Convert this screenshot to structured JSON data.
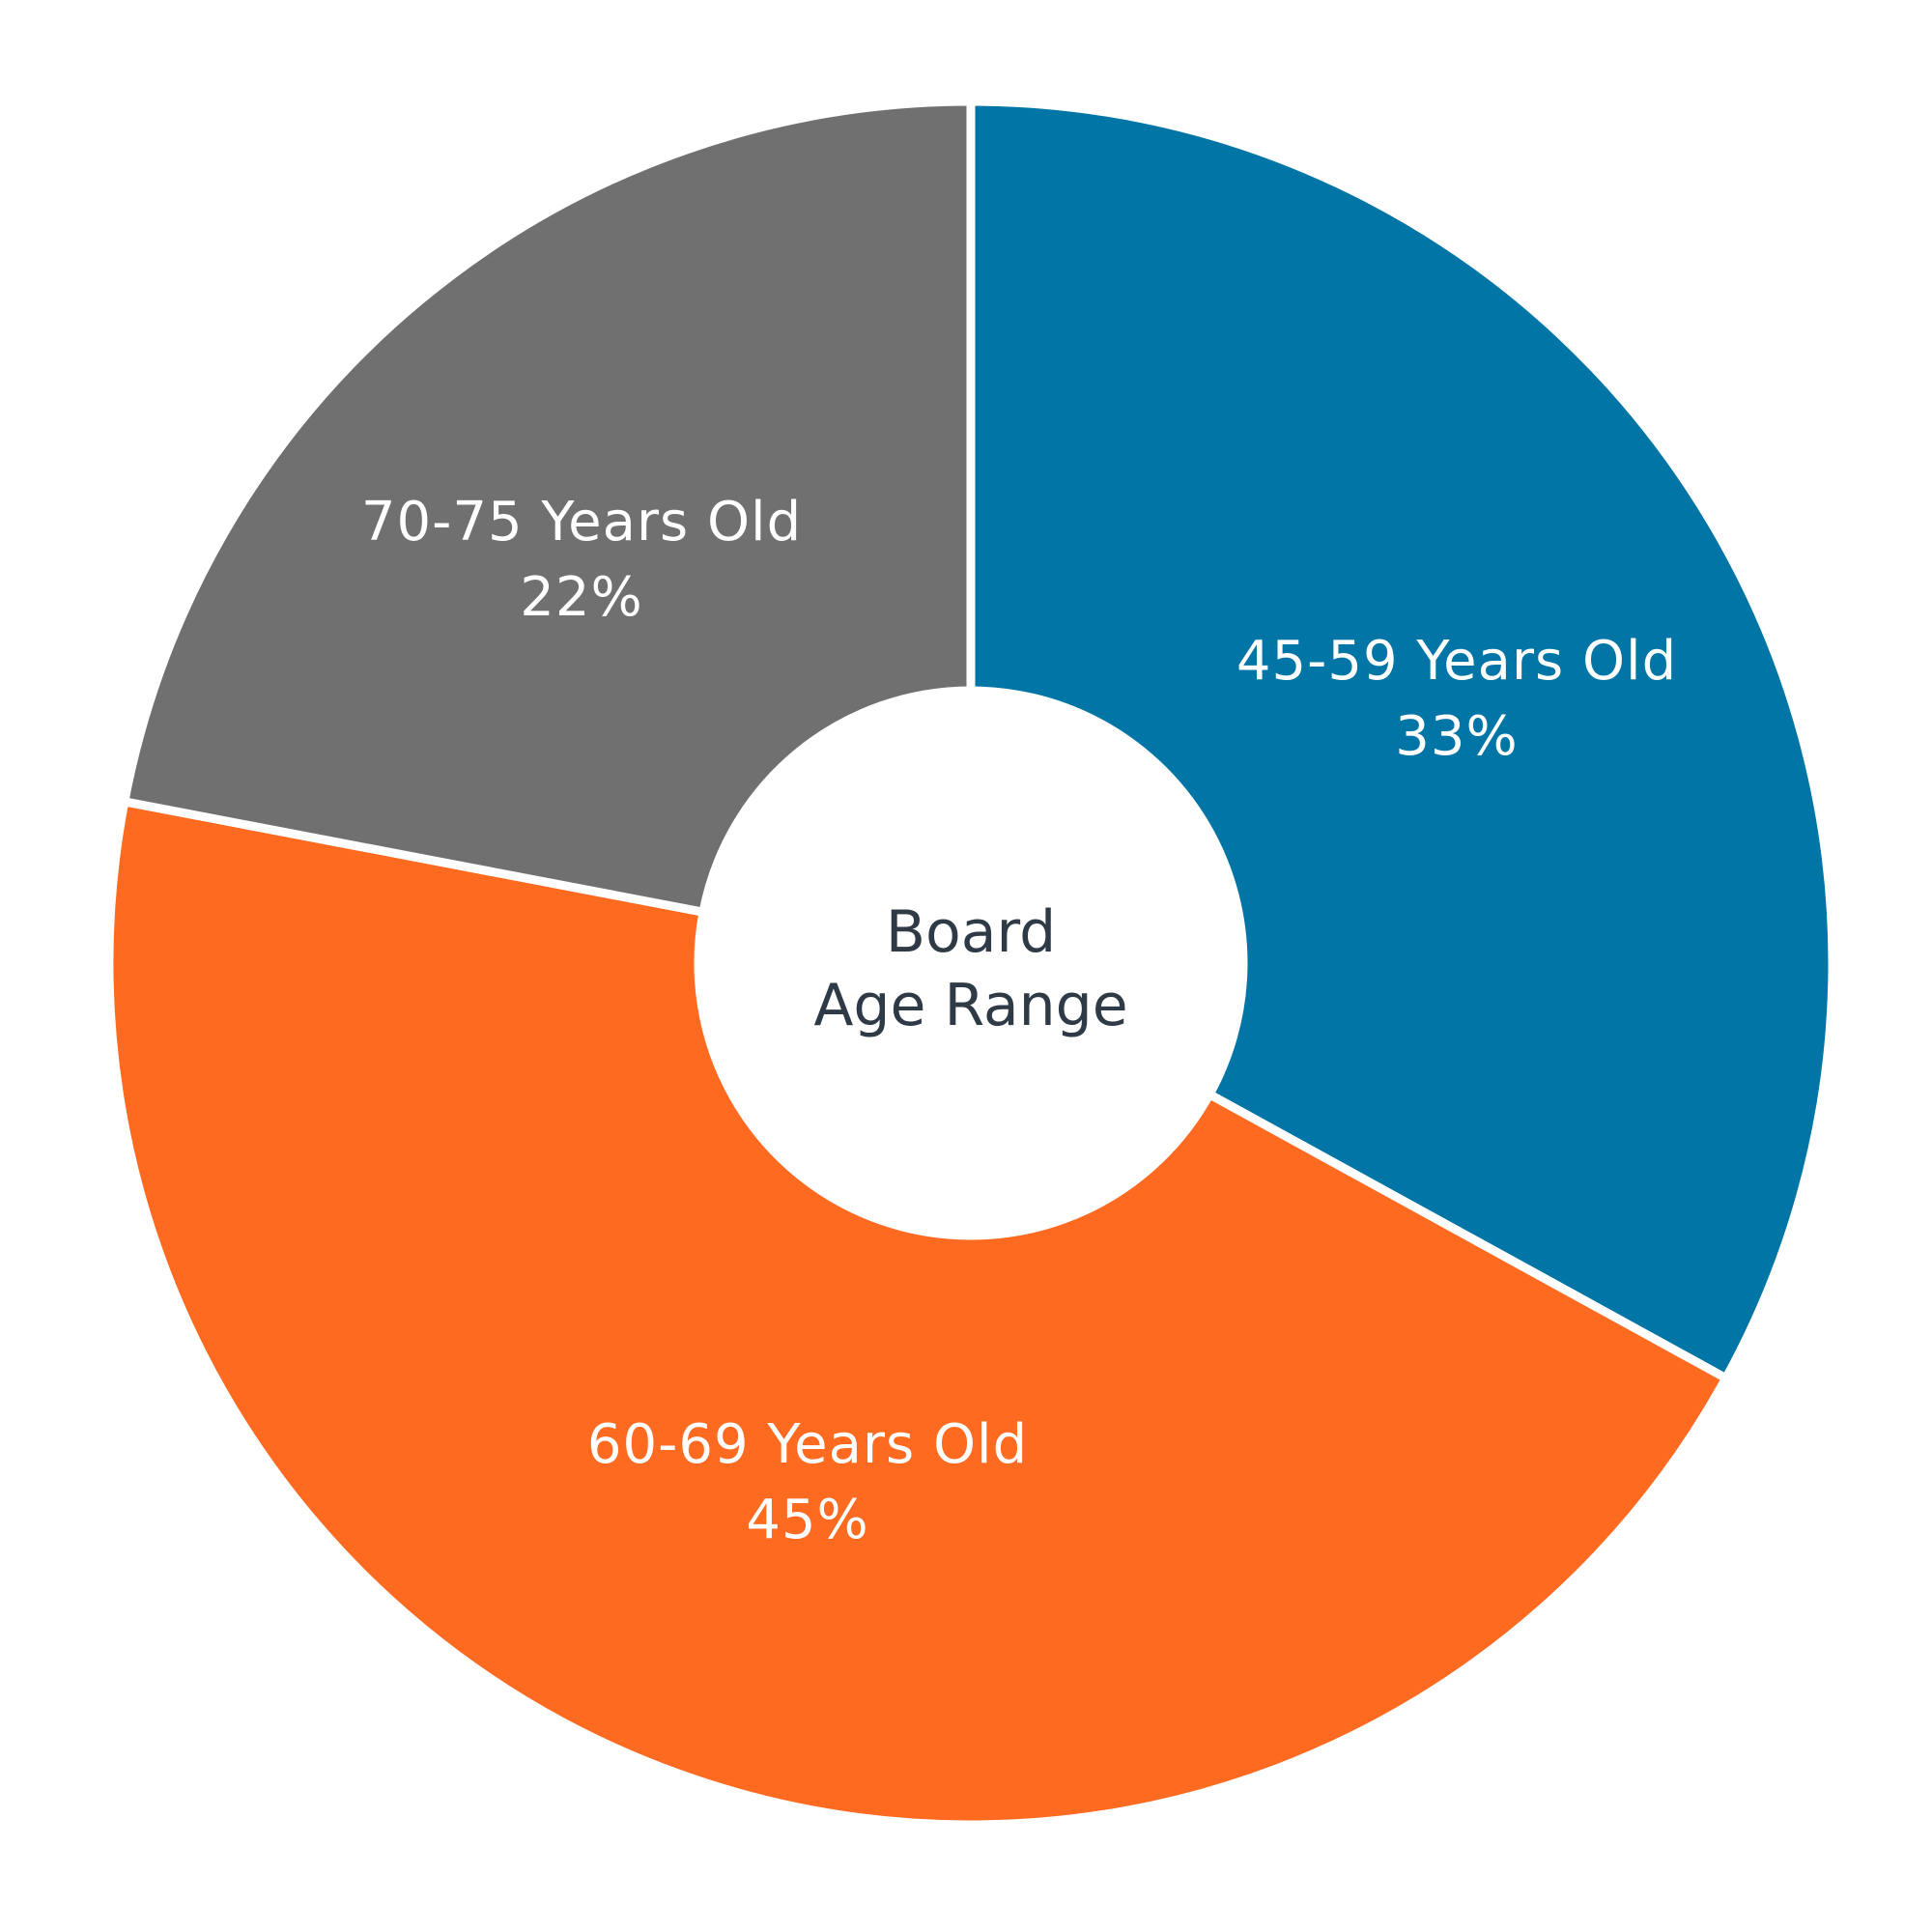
{
  "chart_data": {
    "type": "pie",
    "variant": "donut",
    "title": "Board Age Range",
    "categories": [
      "45-59 Years Old",
      "60-69 Years Old",
      "70-75 Years Old"
    ],
    "values": [
      33,
      45,
      22
    ],
    "unit": "%",
    "colors": [
      "#0175a5",
      "#fe6a20",
      "#707070"
    ],
    "start_angle_deg": 0,
    "direction": "clockwise",
    "legend": "none (labels inside slices)"
  },
  "center": {
    "line1": "Board",
    "line2": "Age Range",
    "color": "#2e3a46"
  },
  "slices": [
    {
      "label": "45-59 Years Old",
      "value_text": "33%",
      "color": "#0175a5"
    },
    {
      "label": "60-69 Years Old",
      "value_text": "45%",
      "color": "#fe6a20"
    },
    {
      "label": "70-75 Years Old",
      "value_text": "22%",
      "color": "#707070"
    }
  ]
}
